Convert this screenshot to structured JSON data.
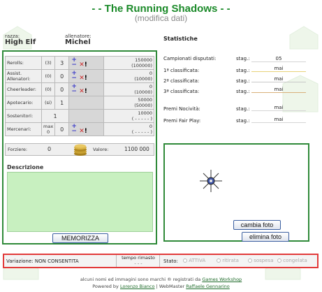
{
  "header": {
    "title": "- - The Running Shadows - -",
    "subtitle": "(modifica dati)"
  },
  "team": {
    "race_label": "razza:",
    "race_value": "High Elf",
    "coach_label": "allenatore:",
    "coach_value": "Michel"
  },
  "roster": [
    {
      "label": "Rerolls:",
      "paren": "(3)",
      "count": "3",
      "price_top": "150000",
      "price_bottom": "(100000)"
    },
    {
      "label": "Assist. Allenatori:",
      "paren": "(0)",
      "count": "0",
      "price_top": "0",
      "price_bottom": "(10000)"
    },
    {
      "label": "Cheerleader:",
      "paren": "(0)",
      "count": "0",
      "price_top": "0",
      "price_bottom": "(10000)"
    },
    {
      "label": "Apotecario:",
      "paren": "(si)",
      "count": "1",
      "price_top": "50000",
      "price_bottom": "(50000)"
    },
    {
      "label": "Sostenitori:",
      "paren": "",
      "count": "1",
      "price_top": "10000",
      "price_bottom": "( - - - - - )"
    },
    {
      "label": "Mercenari:",
      "paren": "max 0",
      "count": "0",
      "price_top": "0",
      "price_bottom": "( - - - - - )"
    }
  ],
  "treasury": {
    "label": "Forziere:",
    "value": "0",
    "worth_label": "Valore:",
    "worth_value": "1100 000"
  },
  "description": {
    "label": "Descrizione",
    "text": ""
  },
  "buttons": {
    "save": "MEMORIZZA",
    "change_photo": "cambia foto",
    "delete_photo": "elimina foto"
  },
  "stats": {
    "title": "Statistiche",
    "stag_label": "stag.:",
    "items": [
      {
        "label": "Campionati disputati:",
        "value": "05"
      },
      {
        "label": "1ª classificata:",
        "value": "mai"
      },
      {
        "label": "2ª classificata:",
        "value": "mai"
      },
      {
        "label": "3ª classificata:",
        "value": "mai"
      },
      {
        "label": "Premi Nocività:",
        "value": "mai"
      },
      {
        "label": "Premi Fair Play:",
        "value": "mai"
      }
    ]
  },
  "status_bar": {
    "variation": "Variazione: NON CONSENTITA",
    "time_label": "tempo rimasto",
    "time_value": "- - -",
    "state_label": "Stato:",
    "options": [
      "ATTIVA",
      "ritirata",
      "sospesa",
      "congelata"
    ]
  },
  "footer": {
    "line1_prefix": "alcuni nomi ed immagini sono marchi ® registrati da ",
    "line1_link": "Games Workshop",
    "powered_by": "Powered by ",
    "author": "Lorenzo Bianco",
    "sep": " | ",
    "webmaster": "WebMaster ",
    "webmaster_name": "Raffaele Gennarino"
  },
  "colors": {
    "title": "#1b8a29",
    "accent_green": "#c8f0c0",
    "alert_red": "#e23a3a"
  }
}
